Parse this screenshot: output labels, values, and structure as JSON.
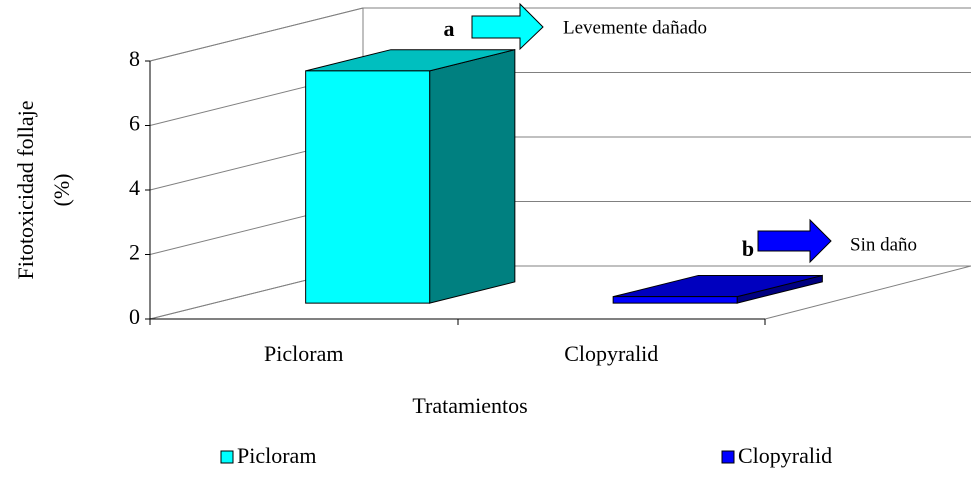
{
  "chart_data": {
    "type": "bar3d",
    "y_label": [
      "Fitotoxicidad follaje",
      "(%)"
    ],
    "x_label": "Tratamientos",
    "categories": [
      "Picloram",
      "Clopyralid"
    ],
    "series": [
      {
        "name": "Picloram",
        "color": "#00ffff",
        "values": [
          7.2,
          null
        ]
      },
      {
        "name": "Clopyralid",
        "color": "#0000ff",
        "values": [
          null,
          0.2
        ]
      }
    ],
    "ylim": [
      0,
      8
    ],
    "yticks": [
      0,
      2,
      4,
      6,
      8
    ],
    "grid": true,
    "annotations": [
      {
        "letter": "a",
        "text": "Levemente dañado"
      },
      {
        "letter": "b",
        "text": "Sin daño"
      }
    ]
  }
}
